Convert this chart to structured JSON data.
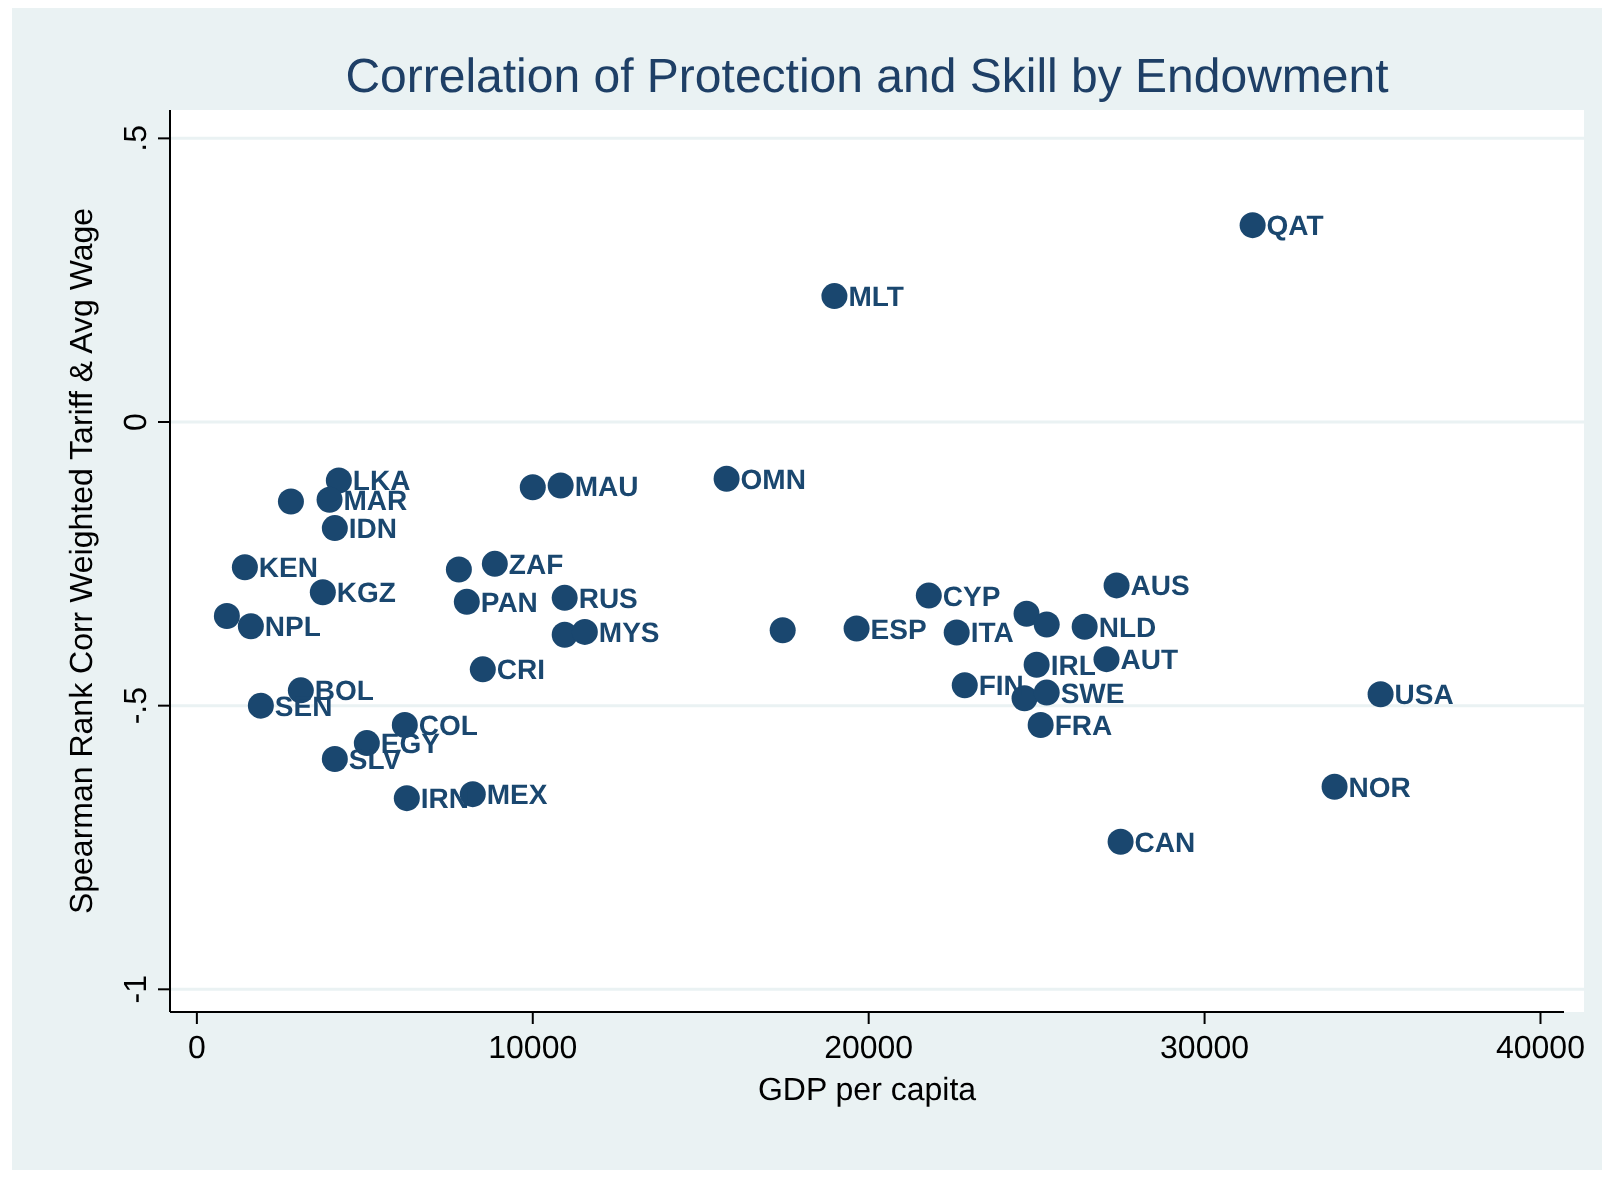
{
  "chart_data": {
    "type": "scatter",
    "title": "Correlation of Protection and Skill by Endowment",
    "xlabel": "GDP per capita",
    "ylabel": "Spearman Rank Corr Weighted Tariff & Avg Wage",
    "xlim": [
      -800,
      40700
    ],
    "ylim": [
      -1.04,
      0.55
    ],
    "xticks": [
      0,
      10000,
      20000,
      30000,
      40000
    ],
    "yticks": [
      {
        "value": -1,
        "label": "-1"
      },
      {
        "value": -0.5,
        "label": "-.5"
      },
      {
        "value": 0,
        "label": "0"
      },
      {
        "value": 0.5,
        "label": ".5"
      }
    ],
    "grid": "y",
    "marker": "circle",
    "series": [
      {
        "color": "#1a476f",
        "x": [
          4226,
          2800,
          3950,
          4107,
          1429,
          3750,
          893,
          1607,
          3095,
          1905,
          6190,
          4107,
          5060,
          6250,
          8214,
          8512,
          7800,
          8870,
          8036,
          10950,
          10950,
          11550,
          10000,
          10830,
          15770,
          18980,
          31430,
          21790,
          17440,
          19640,
          22620,
          24700,
          25300,
          26430,
          27380,
          27080,
          25000,
          22860,
          24640,
          25300,
          25120,
          27500,
          35240,
          33870
        ],
        "values": [
          -0.103,
          -0.14,
          -0.137,
          -0.187,
          -0.256,
          -0.3,
          -0.342,
          -0.36,
          -0.473,
          -0.5,
          -0.534,
          -0.594,
          -0.566,
          -0.663,
          -0.656,
          -0.436,
          -0.26,
          -0.25,
          -0.317,
          -0.31,
          -0.375,
          -0.37,
          -0.115,
          -0.112,
          -0.1,
          0.222,
          0.347,
          -0.306,
          -0.367,
          -0.364,
          -0.371,
          -0.338,
          -0.357,
          -0.361,
          -0.288,
          -0.418,
          -0.428,
          -0.464,
          -0.487,
          -0.477,
          -0.534,
          -0.74,
          -0.48,
          -0.643
        ]
      }
    ],
    "annotations": [
      {
        "text": "LKA",
        "x": 4226,
        "y": -0.103
      },
      {
        "text": "MAR",
        "x": 3950,
        "y": -0.137
      },
      {
        "text": "IDN",
        "x": 4107,
        "y": -0.187
      },
      {
        "text": "KEN",
        "x": 1429,
        "y": -0.256
      },
      {
        "text": "KGZ",
        "x": 3750,
        "y": -0.3
      },
      {
        "text": "NPL",
        "x": 1607,
        "y": -0.36
      },
      {
        "text": "BOL",
        "x": 3095,
        "y": -0.473
      },
      {
        "text": "SEN",
        "x": 1905,
        "y": -0.5
      },
      {
        "text": "COL",
        "x": 6190,
        "y": -0.534
      },
      {
        "text": "SLV",
        "x": 4107,
        "y": -0.594
      },
      {
        "text": "EGY",
        "x": 5060,
        "y": -0.566
      },
      {
        "text": "IRN",
        "x": 6250,
        "y": -0.663
      },
      {
        "text": "MEX",
        "x": 8214,
        "y": -0.656
      },
      {
        "text": "CRI",
        "x": 8512,
        "y": -0.436
      },
      {
        "text": "ZAF",
        "x": 8870,
        "y": -0.25
      },
      {
        "text": "PAN",
        "x": 8036,
        "y": -0.317
      },
      {
        "text": "RUS",
        "x": 10950,
        "y": -0.31
      },
      {
        "text": "MYS",
        "x": 11550,
        "y": -0.37
      },
      {
        "text": "MAU",
        "x": 10830,
        "y": -0.112
      },
      {
        "text": "OMN",
        "x": 15770,
        "y": -0.1
      },
      {
        "text": "MLT",
        "x": 18980,
        "y": 0.222
      },
      {
        "text": "QAT",
        "x": 31430,
        "y": 0.347
      },
      {
        "text": "CYP",
        "x": 21790,
        "y": -0.306
      },
      {
        "text": "ESP",
        "x": 19640,
        "y": -0.364
      },
      {
        "text": "ITA",
        "x": 22620,
        "y": -0.371
      },
      {
        "text": "NLD",
        "x": 26430,
        "y": -0.361
      },
      {
        "text": "AUS",
        "x": 27380,
        "y": -0.288
      },
      {
        "text": "AUT",
        "x": 27080,
        "y": -0.418
      },
      {
        "text": "IRL",
        "x": 25000,
        "y": -0.428
      },
      {
        "text": "FIN",
        "x": 22860,
        "y": -0.464
      },
      {
        "text": "SWE",
        "x": 25300,
        "y": -0.477
      },
      {
        "text": "FRA",
        "x": 25120,
        "y": -0.534
      },
      {
        "text": "CAN",
        "x": 27500,
        "y": -0.74
      },
      {
        "text": "USA",
        "x": 35240,
        "y": -0.48
      },
      {
        "text": "NOR",
        "x": 33870,
        "y": -0.643
      }
    ]
  }
}
